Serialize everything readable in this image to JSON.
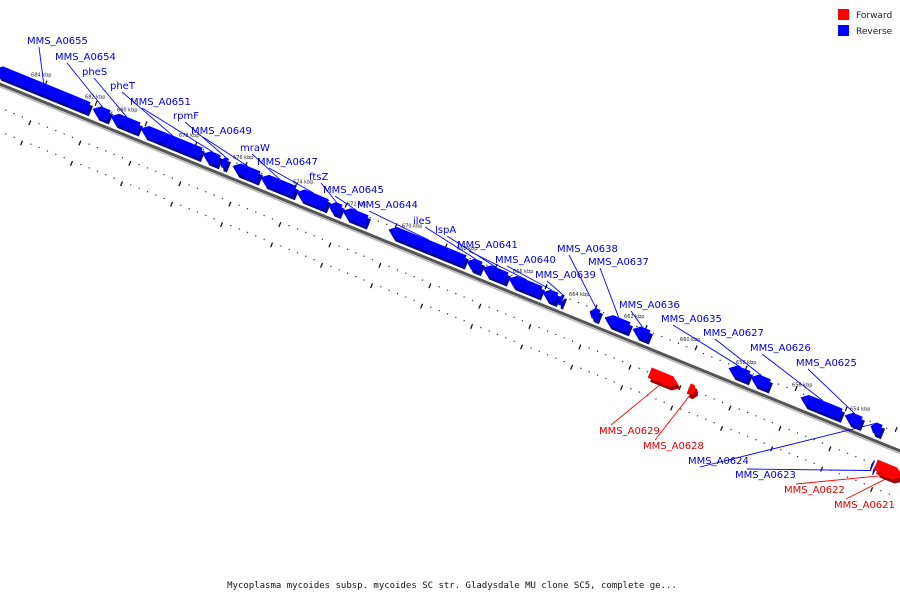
{
  "legend": {
    "forward": {
      "label": "Forward",
      "color": "#ff0000"
    },
    "reverse": {
      "label": "Reverse",
      "color": "#0000ff"
    }
  },
  "caption": "Mycoplasma mycoides subsp. mycoides SC str. Gladysdale MU clone SC5, complete ge...",
  "scale": {
    "tick_labels": [
      "684 kbp",
      "682 kbp",
      "680 kbp",
      "678 kbp",
      "676 kbp",
      "674 kbp",
      "672 kbp",
      "670 kbp",
      "668 kbp",
      "666 kbp",
      "664 kbp",
      "662 kbp",
      "660 kbp",
      "658 kbp",
      "656 kbp",
      "654 kbp"
    ]
  },
  "genes": [
    {
      "name": "MMS_A0655",
      "strand": "reverse"
    },
    {
      "name": "MMS_A0654",
      "strand": "reverse"
    },
    {
      "name": "pheS",
      "strand": "reverse"
    },
    {
      "name": "pheT",
      "strand": "reverse"
    },
    {
      "name": "MMS_A0651",
      "strand": "reverse"
    },
    {
      "name": "rpmF",
      "strand": "reverse"
    },
    {
      "name": "MMS_A0649",
      "strand": "reverse"
    },
    {
      "name": "mraW",
      "strand": "reverse"
    },
    {
      "name": "MMS_A0647",
      "strand": "reverse"
    },
    {
      "name": "ftsZ",
      "strand": "reverse"
    },
    {
      "name": "MMS_A0645",
      "strand": "reverse"
    },
    {
      "name": "MMS_A0644",
      "strand": "reverse"
    },
    {
      "name": "ileS",
      "strand": "reverse"
    },
    {
      "name": "lspA",
      "strand": "reverse"
    },
    {
      "name": "MMS_A0641",
      "strand": "reverse"
    },
    {
      "name": "MMS_A0640",
      "strand": "reverse"
    },
    {
      "name": "MMS_A0639",
      "strand": "reverse"
    },
    {
      "name": "MMS_A0638",
      "strand": "reverse"
    },
    {
      "name": "MMS_A0637",
      "strand": "reverse"
    },
    {
      "name": "MMS_A0636",
      "strand": "reverse"
    },
    {
      "name": "MMS_A0635",
      "strand": "reverse"
    },
    {
      "name": "MMS_A0627",
      "strand": "reverse"
    },
    {
      "name": "MMS_A0626",
      "strand": "reverse"
    },
    {
      "name": "MMS_A0625",
      "strand": "reverse"
    },
    {
      "name": "MMS_A0629",
      "strand": "forward"
    },
    {
      "name": "MMS_A0628",
      "strand": "forward"
    },
    {
      "name": "MMS_A0624",
      "strand": "reverse"
    },
    {
      "name": "MMS_A0623",
      "strand": "reverse"
    },
    {
      "name": "MMS_A0622",
      "strand": "forward"
    },
    {
      "name": "MMS_A0621",
      "strand": "forward"
    }
  ]
}
